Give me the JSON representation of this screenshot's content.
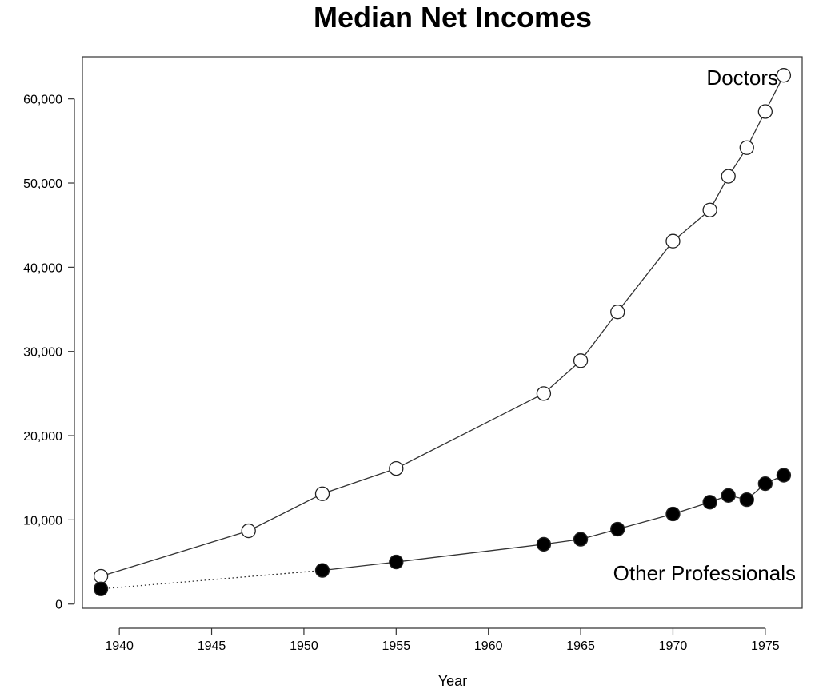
{
  "chart_data": {
    "type": "line",
    "title": "Median Net Incomes",
    "xlabel": "Year",
    "ylabel": "",
    "xlim": [
      1938,
      1977
    ],
    "ylim": [
      -500,
      65000
    ],
    "x_ticks": [
      1940,
      1945,
      1950,
      1955,
      1960,
      1965,
      1970,
      1975
    ],
    "y_ticks": [
      0,
      10000,
      20000,
      30000,
      40000,
      50000,
      60000
    ],
    "y_tick_labels": [
      "0",
      "10,000",
      "20,000",
      "30,000",
      "40,000",
      "50,000",
      "60,000"
    ],
    "grid": false,
    "series": [
      {
        "name": "Doctors",
        "marker": "open-circle",
        "x": [
          1939,
          1947,
          1951,
          1955,
          1963,
          1965,
          1967,
          1970,
          1972,
          1973,
          1974,
          1975,
          1976
        ],
        "y": [
          3300,
          8700,
          13100,
          16100,
          25000,
          28900,
          34700,
          43100,
          46800,
          50800,
          54200,
          58500,
          62800
        ]
      },
      {
        "name": "Other Professionals",
        "marker": "filled-circle",
        "dotted_first_segment": true,
        "x": [
          1939,
          1951,
          1955,
          1963,
          1965,
          1967,
          1970,
          1972,
          1973,
          1974,
          1975,
          1976
        ],
        "y": [
          1800,
          4000,
          5000,
          7100,
          7700,
          8900,
          10700,
          12100,
          12900,
          12400,
          14300,
          15300
        ]
      }
    ]
  }
}
